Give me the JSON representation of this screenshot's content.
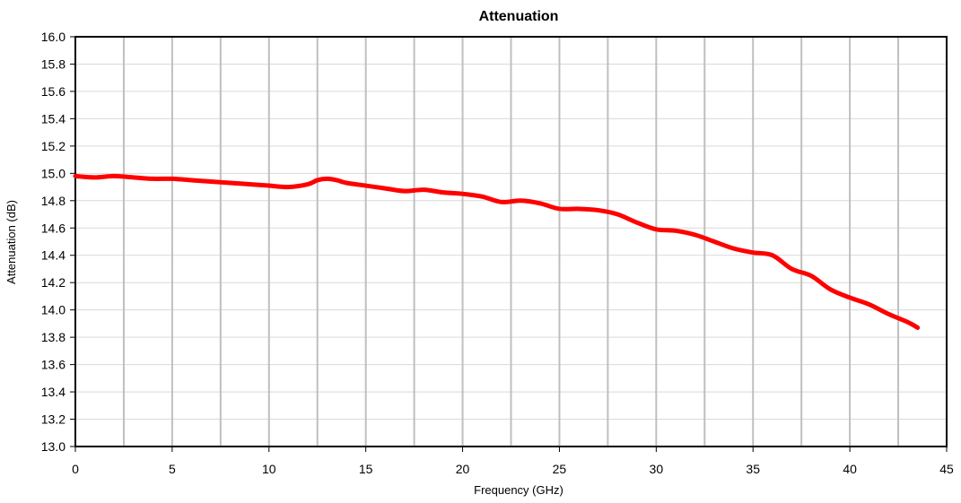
{
  "chart_data": {
    "type": "line",
    "title": "Attenuation",
    "xlabel": "Frequency (GHz)",
    "ylabel": "Attenuation (dB)",
    "xlim": [
      0,
      45
    ],
    "ylim": [
      13.0,
      16.0
    ],
    "x_ticks": [
      "0",
      "5",
      "10",
      "15",
      "20",
      "25",
      "30",
      "35",
      "40",
      "45"
    ],
    "y_ticks": [
      "13.0",
      "13.2",
      "13.4",
      "13.6",
      "13.8",
      "14.0",
      "14.2",
      "14.4",
      "14.6",
      "14.8",
      "15.0",
      "15.2",
      "15.4",
      "15.6",
      "15.8",
      "16.0"
    ],
    "grid": {
      "vertical": true,
      "horizontal": true,
      "vertical_step": 2.5,
      "horizontal_step": 0.2
    },
    "colors": {
      "series": "#ff0000",
      "vertical_grid": "#bfbfbf",
      "horizontal_grid": "#d9d9d9",
      "frame": "#000000"
    },
    "legend": "none",
    "series": [
      {
        "x": [
          0,
          1,
          2,
          3,
          4,
          5,
          6,
          7,
          8,
          9,
          10,
          11,
          12,
          12.5,
          13,
          13.5,
          14,
          15,
          16,
          17,
          18,
          19,
          20,
          21,
          22,
          23,
          24,
          25,
          26,
          27,
          28,
          29,
          30,
          31,
          32,
          33,
          34,
          35,
          36,
          37,
          38,
          39,
          40,
          41,
          42,
          43,
          43.5
        ],
        "values": [
          14.98,
          14.97,
          14.98,
          14.97,
          14.96,
          14.96,
          14.95,
          14.94,
          14.93,
          14.92,
          14.91,
          14.9,
          14.92,
          14.95,
          14.96,
          14.95,
          14.93,
          14.91,
          14.89,
          14.87,
          14.88,
          14.86,
          14.85,
          14.83,
          14.79,
          14.8,
          14.78,
          14.74,
          14.74,
          14.73,
          14.7,
          14.64,
          14.59,
          14.58,
          14.55,
          14.5,
          14.45,
          14.42,
          14.4,
          14.3,
          14.25,
          14.15,
          14.09,
          14.04,
          13.97,
          13.91,
          13.87
        ]
      }
    ]
  }
}
